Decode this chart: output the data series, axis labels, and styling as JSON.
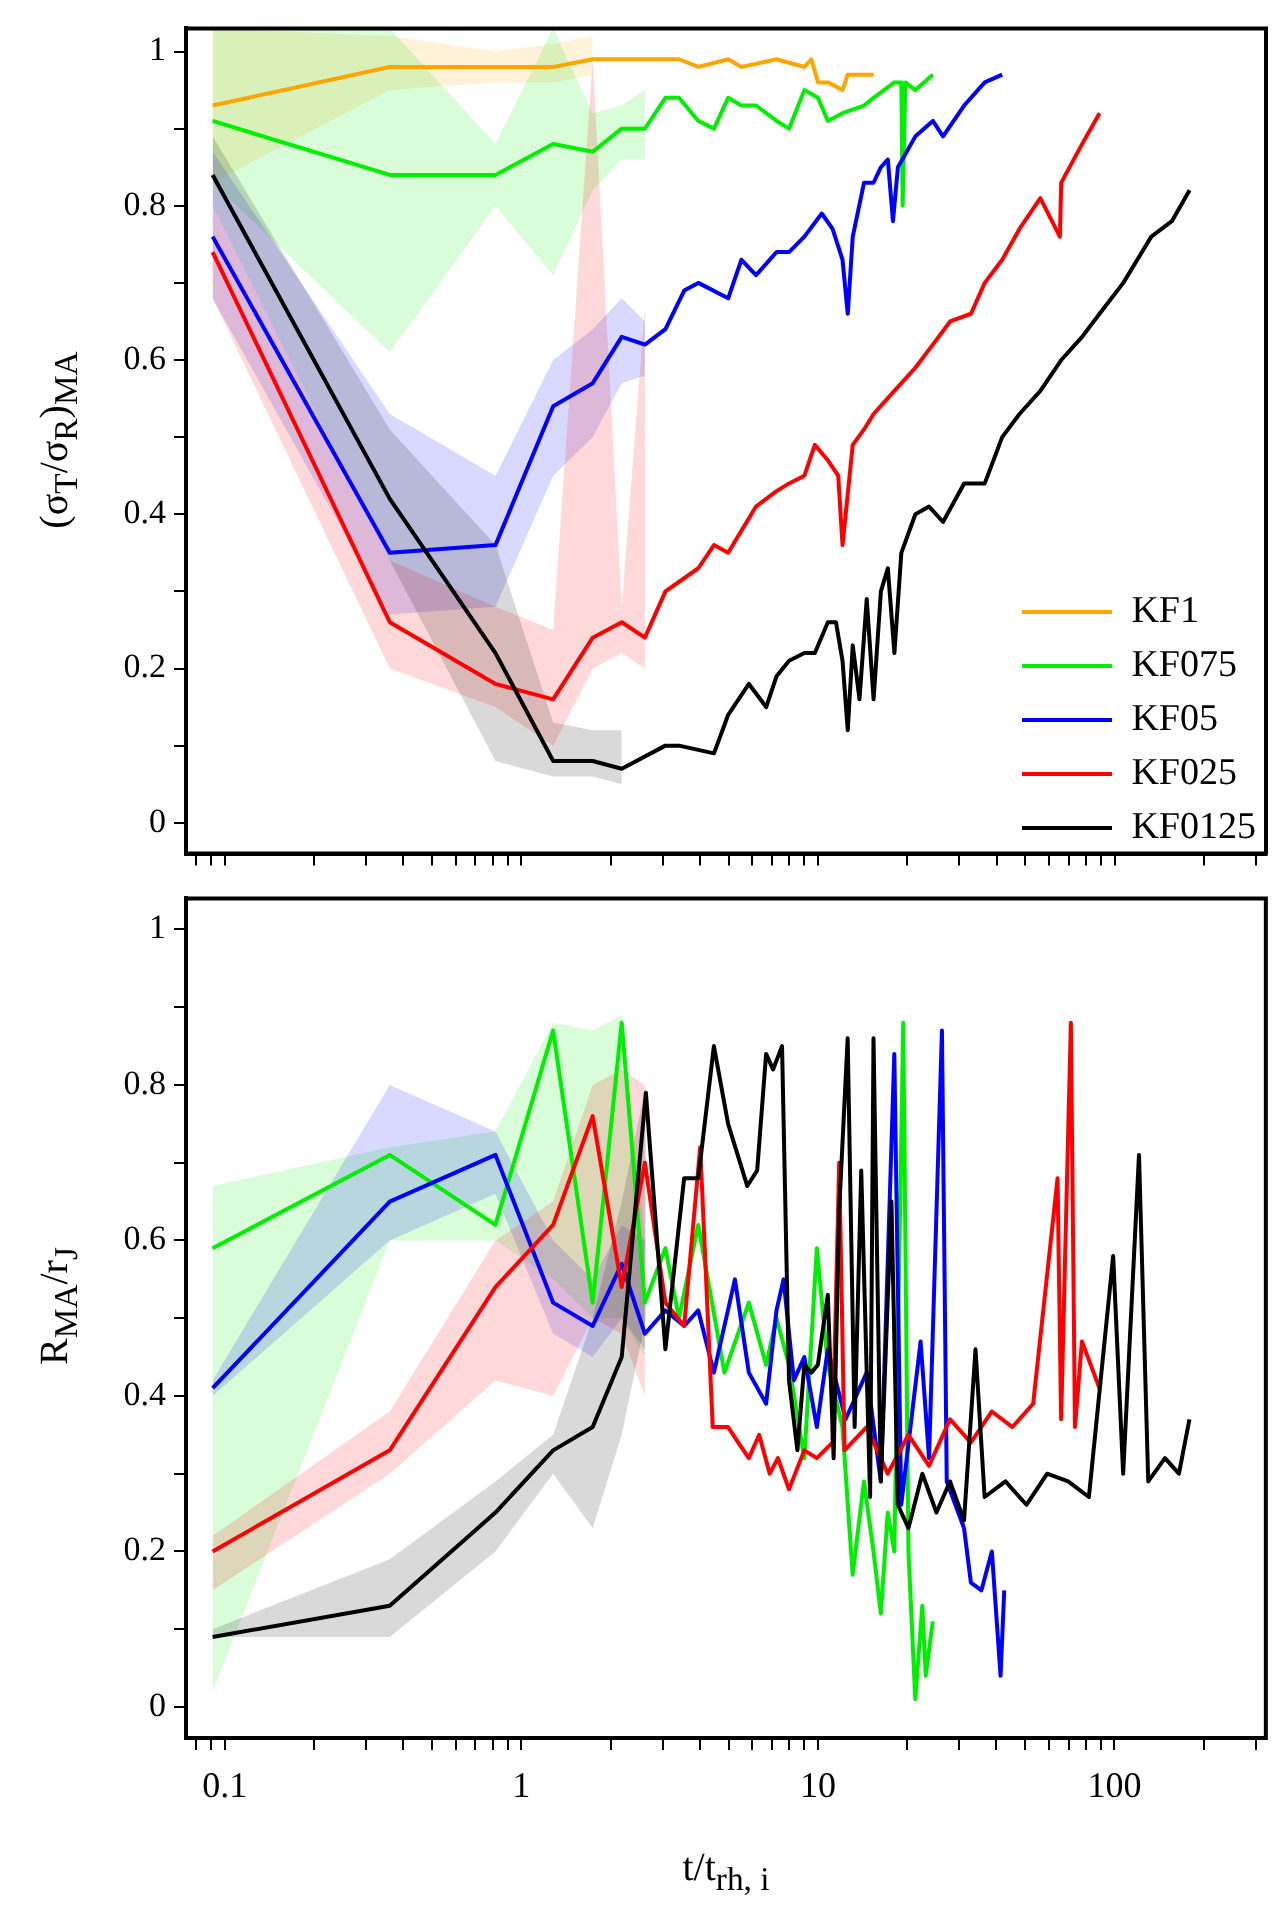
{
  "chart_data": [
    {
      "type": "line",
      "ylabel": "(σ$_{T}$/σ$_{R}$)$_{MA}$",
      "log": "x",
      "grid": false,
      "legend": "bottom right",
      "marker": "none",
      "tick_labels": "y",
      "xlim": [
        0.074,
        324
      ],
      "xticks": [
        {
          "value": 0.08,
          "label": null
        },
        {
          "value": 0.09,
          "label": null
        },
        {
          "value": 0.1,
          "label": null
        },
        {
          "value": 0.2,
          "label": null
        },
        {
          "value": 0.3,
          "label": null
        },
        {
          "value": 0.4,
          "label": null
        },
        {
          "value": 0.5,
          "label": null
        },
        {
          "value": 0.6,
          "label": null
        },
        {
          "value": 0.7,
          "label": null
        },
        {
          "value": 0.8,
          "label": null
        },
        {
          "value": 0.9,
          "label": null
        },
        {
          "value": 1,
          "label": null
        },
        {
          "value": 2,
          "label": null
        },
        {
          "value": 3,
          "label": null
        },
        {
          "value": 4,
          "label": null
        },
        {
          "value": 5,
          "label": null
        },
        {
          "value": 6,
          "label": null
        },
        {
          "value": 7,
          "label": null
        },
        {
          "value": 8,
          "label": null
        },
        {
          "value": 9,
          "label": null
        },
        {
          "value": 10,
          "label": null
        },
        {
          "value": 20,
          "label": null
        },
        {
          "value": 30,
          "label": null
        },
        {
          "value": 40,
          "label": null
        },
        {
          "value": 50,
          "label": null
        },
        {
          "value": 60,
          "label": null
        },
        {
          "value": 70,
          "label": null
        },
        {
          "value": 80,
          "label": null
        },
        {
          "value": 90,
          "label": null
        },
        {
          "value": 100,
          "label": null
        },
        {
          "value": 200,
          "label": null
        },
        {
          "value": 300,
          "label": null
        }
      ],
      "ylim": [
        -0.04,
        1.03
      ],
      "yticks": [
        0,
        {
          "value": 0.1,
          "label": null
        },
        0.2,
        {
          "value": 0.3,
          "label": null
        },
        0.4,
        {
          "value": 0.5,
          "label": null
        },
        0.6,
        {
          "value": 0.7,
          "label": null
        },
        0.8,
        {
          "value": 0.9,
          "label": null
        },
        1
      ],
      "series": [
        {
          "name": "KF1",
          "color": "#ffa500",
          "x": [
            0.091,
            0.36,
            0.818,
            1.28,
            1.74,
            2.61,
            3.4,
            3.95,
            4.98,
            5.52,
            7.25,
            9.0,
            9.5,
            10,
            10.8,
            12.1,
            12.6,
            15.4
          ],
          "values": [
            0.93,
            0.98,
            0.98,
            0.98,
            0.99,
            0.99,
            0.99,
            0.98,
            0.99,
            0.98,
            0.99,
            0.98,
            0.99,
            0.96,
            0.96,
            0.95,
            0.97,
            0.97
          ],
          "lower": [
            0.83,
            0.95,
            0.96,
            0.96,
            0.97,
            null,
            null,
            null,
            null,
            null,
            null,
            null,
            null,
            null,
            null,
            null,
            null,
            null
          ],
          "upper": [
            1.03,
            1.02,
            1.0,
            1.01,
            1.02,
            null,
            null,
            null,
            null,
            null,
            null,
            null,
            null,
            null,
            null,
            null,
            null,
            null
          ]
        },
        {
          "name": "KF075",
          "color": "#00ee00",
          "x": [
            0.091,
            0.36,
            0.818,
            1.28,
            1.74,
            2.18,
            2.61,
            3.06,
            3.4,
            3.95,
            4.46,
            4.98,
            5.52,
            6.18,
            7.25,
            7.99,
            9.0,
            10,
            10.8,
            12.1,
            14.3,
            15.4,
            18.1,
            19.1,
            19.3,
            19.7,
            21.3,
            24.4
          ],
          "values": [
            0.91,
            0.84,
            0.84,
            0.88,
            0.87,
            0.9,
            0.9,
            0.94,
            0.94,
            0.91,
            0.9,
            0.94,
            0.93,
            0.93,
            0.91,
            0.9,
            0.95,
            0.94,
            0.91,
            0.92,
            0.93,
            0.94,
            0.96,
            0.96,
            0.8,
            0.96,
            0.95,
            0.97
          ],
          "lower": [
            0.83,
            0.61,
            0.8,
            0.71,
            0.82,
            0.86,
            0.86,
            null,
            null,
            null,
            null,
            null,
            null,
            null,
            null,
            null,
            null,
            null,
            null,
            null,
            null,
            null,
            null,
            null,
            null,
            null,
            null,
            null
          ],
          "upper": [
            1.03,
            1.03,
            0.88,
            1.03,
            0.92,
            0.93,
            0.95,
            null,
            null,
            null,
            null,
            null,
            null,
            null,
            null,
            null,
            null,
            null,
            null,
            null,
            null,
            null,
            null,
            null,
            null,
            null,
            null,
            null
          ]
        },
        {
          "name": "KF05",
          "color": "#0000ff",
          "x": [
            0.091,
            0.36,
            0.818,
            1.28,
            1.74,
            2.18,
            2.61,
            3.06,
            3.54,
            3.95,
            4.98,
            5.52,
            6.18,
            7.25,
            7.99,
            9.0,
            10.3,
            11.2,
            12.1,
            12.6,
            13.1,
            14.3,
            15.4,
            16.3,
            17.2,
            17.9,
            18.6,
            21.3,
            24.4,
            26.4,
            31.1,
            36.5,
            41.8
          ],
          "values": [
            0.76,
            0.35,
            0.36,
            0.54,
            0.57,
            0.63,
            0.62,
            0.64,
            0.69,
            0.7,
            0.68,
            0.73,
            0.71,
            0.74,
            0.74,
            0.76,
            0.79,
            0.77,
            0.73,
            0.66,
            0.76,
            0.83,
            0.83,
            0.85,
            0.86,
            0.78,
            0.85,
            0.89,
            0.91,
            0.89,
            0.93,
            0.96,
            0.97
          ],
          "lower": [
            0.68,
            0.27,
            0.28,
            0.45,
            0.5,
            0.57,
            0.58,
            null,
            null,
            null,
            null,
            null,
            null,
            null,
            null,
            null,
            null,
            null,
            null,
            null,
            null,
            null,
            null,
            null,
            null,
            null,
            null,
            null,
            null,
            null,
            null,
            null,
            null
          ],
          "upper": [
            0.87,
            0.53,
            0.45,
            0.6,
            0.64,
            0.68,
            0.65,
            null,
            null,
            null,
            null,
            null,
            null,
            null,
            null,
            null,
            null,
            null,
            null,
            null,
            null,
            null,
            null,
            null,
            null,
            null,
            null,
            null,
            null,
            null,
            null,
            null,
            null
          ]
        },
        {
          "name": "KF025",
          "color": "#ff0000",
          "x": [
            0.091,
            0.36,
            0.818,
            1.28,
            1.74,
            2.18,
            2.61,
            3.06,
            3.95,
            4.46,
            4.98,
            6.18,
            7.25,
            7.99,
            9.0,
            9.76,
            10.8,
            11.7,
            12.1,
            13.1,
            14.3,
            15.4,
            18.1,
            21.3,
            24.4,
            27.9,
            32.8,
            36.5,
            41.8,
            47.8,
            56.2,
            65.4,
            66.1,
            77.7,
            89.0
          ],
          "values": [
            0.74,
            0.26,
            0.18,
            0.16,
            0.24,
            0.26,
            0.24,
            0.3,
            0.33,
            0.36,
            0.35,
            0.41,
            0.43,
            0.44,
            0.45,
            0.49,
            0.47,
            0.45,
            0.36,
            0.49,
            0.51,
            0.53,
            0.56,
            0.59,
            0.62,
            0.65,
            0.66,
            0.7,
            0.73,
            0.77,
            0.81,
            0.76,
            0.83,
            0.88,
            0.92
          ],
          "lower": [
            0.68,
            0.2,
            0.15,
            0.1,
            0.2,
            0.22,
            0.2,
            null,
            null,
            null,
            null,
            null,
            null,
            null,
            null,
            null,
            null,
            null,
            null,
            null,
            null,
            null,
            null,
            null,
            null,
            null,
            null,
            null,
            null,
            null,
            null,
            null,
            null,
            null,
            null
          ],
          "upper": [
            0.8,
            0.34,
            0.28,
            0.25,
            0.99,
            0.28,
            0.67,
            null,
            null,
            null,
            null,
            null,
            null,
            null,
            null,
            null,
            null,
            null,
            null,
            null,
            null,
            null,
            null,
            null,
            null,
            null,
            null,
            null,
            null,
            null,
            null,
            null,
            null,
            null,
            null
          ]
        },
        {
          "name": "KF0125",
          "color": "#000000",
          "x": [
            0.091,
            0.36,
            0.818,
            1.28,
            1.74,
            2.18,
            3.06,
            3.4,
            4.46,
            4.98,
            5.85,
            6.69,
            7.25,
            7.99,
            9.0,
            9.76,
            10.8,
            11.5,
            12.1,
            12.6,
            13.1,
            13.8,
            14.6,
            15.4,
            16.3,
            17.2,
            18.1,
            19.1,
            21.3,
            23.7,
            26.4,
            31.1,
            36.5,
            41.8,
            47.8,
            56.2,
            66.1,
            77.7,
            89.0,
            107,
            133,
            156,
            179
          ],
          "values": [
            0.84,
            0.42,
            0.22,
            0.08,
            0.08,
            0.07,
            0.1,
            0.1,
            0.09,
            0.14,
            0.18,
            0.15,
            0.19,
            0.21,
            0.22,
            0.22,
            0.26,
            0.26,
            0.21,
            0.12,
            0.23,
            0.16,
            0.29,
            0.16,
            0.3,
            0.33,
            0.22,
            0.35,
            0.4,
            0.41,
            0.39,
            0.44,
            0.44,
            0.5,
            0.53,
            0.56,
            0.6,
            0.63,
            0.66,
            0.7,
            0.76,
            0.78,
            0.82
          ],
          "lower": [
            0.8,
            0.34,
            0.08,
            0.06,
            0.06,
            0.05,
            null,
            null,
            null,
            null,
            null,
            null,
            null,
            null,
            null,
            null,
            null,
            null,
            null,
            null,
            null,
            null,
            null,
            null,
            null,
            null,
            null,
            null,
            null,
            null,
            null,
            null,
            null,
            null,
            null,
            null,
            null,
            null,
            null,
            null,
            null,
            null,
            null
          ],
          "upper": [
            0.89,
            0.51,
            0.36,
            0.13,
            0.12,
            0.12,
            null,
            null,
            null,
            null,
            null,
            null,
            null,
            null,
            null,
            null,
            null,
            null,
            null,
            null,
            null,
            null,
            null,
            null,
            null,
            null,
            null,
            null,
            null,
            null,
            null,
            null,
            null,
            null,
            null,
            null,
            null,
            null,
            null,
            null,
            null,
            null,
            null
          ]
        }
      ]
    },
    {
      "type": "line",
      "xlabel": "t/t$_{rh, i}$",
      "ylabel": "R$_{MA}$/r$_{J}$",
      "log": "x",
      "grid": false,
      "marker": "none",
      "xlim": [
        0.074,
        324
      ],
      "xticks": [
        {
          "value": 0.08,
          "label": null
        },
        {
          "value": 0.09,
          "label": null
        },
        {
          "value": 0.1,
          "label": "0.1"
        },
        {
          "value": 0.2,
          "label": null
        },
        {
          "value": 0.3,
          "label": null
        },
        {
          "value": 0.4,
          "label": null
        },
        {
          "value": 0.5,
          "label": null
        },
        {
          "value": 0.6,
          "label": null
        },
        {
          "value": 0.7,
          "label": null
        },
        {
          "value": 0.8,
          "label": null
        },
        {
          "value": 0.9,
          "label": null
        },
        1,
        {
          "value": 2,
          "label": null
        },
        {
          "value": 3,
          "label": null
        },
        {
          "value": 4,
          "label": null
        },
        {
          "value": 5,
          "label": null
        },
        {
          "value": 6,
          "label": null
        },
        {
          "value": 7,
          "label": null
        },
        {
          "value": 8,
          "label": null
        },
        {
          "value": 9,
          "label": null
        },
        10,
        {
          "value": 20,
          "label": null
        },
        {
          "value": 30,
          "label": null
        },
        {
          "value": 40,
          "label": null
        },
        {
          "value": 50,
          "label": null
        },
        {
          "value": 60,
          "label": null
        },
        {
          "value": 70,
          "label": null
        },
        {
          "value": 80,
          "label": null
        },
        {
          "value": 90,
          "label": null
        },
        100,
        {
          "value": 200,
          "label": null
        },
        {
          "value": 300,
          "label": null
        }
      ],
      "ylim": [
        -0.04,
        1.04
      ],
      "yticks": [
        0,
        {
          "value": 0.1,
          "label": null
        },
        0.2,
        {
          "value": 0.3,
          "label": null
        },
        0.4,
        {
          "value": 0.5,
          "label": null
        },
        0.6,
        {
          "value": 0.7,
          "label": null
        },
        0.8,
        {
          "value": 0.9,
          "label": null
        },
        1
      ],
      "series": [
        {
          "color": "#00ee00",
          "x": [
            0.091,
            0.36,
            0.818,
            1.28,
            1.74,
            2.18,
            2.61,
            3.06,
            3.4,
            3.95,
            4.84,
            5.85,
            6.69,
            7.25,
            7.99,
            9.0,
            9.92,
            10.8,
            12.1,
            13.1,
            14.3,
            15.4,
            16.3,
            17.2,
            18.1,
            19.4,
            20.2,
            21.3,
            22.5,
            23.1,
            24.4
          ],
          "values": [
            0.59,
            0.71,
            0.62,
            0.87,
            0.52,
            0.88,
            0.52,
            0.59,
            0.5,
            0.62,
            0.43,
            0.52,
            0.44,
            0.5,
            0.44,
            0.32,
            0.59,
            0.44,
            0.36,
            0.17,
            0.29,
            0.2,
            0.12,
            0.25,
            0.2,
            0.88,
            0.2,
            0.01,
            0.13,
            0.04,
            0.11
          ],
          "lower": [
            0.02,
            0.6,
            0.6,
            0.55,
            0.5,
            0.5,
            0.45,
            null,
            null,
            null,
            null,
            null,
            null,
            null,
            null,
            null,
            null,
            null,
            null,
            null,
            null,
            null,
            null,
            null,
            null,
            null,
            null,
            null,
            null,
            null,
            null
          ],
          "upper": [
            0.67,
            0.72,
            0.74,
            0.88,
            0.87,
            0.89,
            0.6,
            null,
            null,
            null,
            null,
            null,
            null,
            null,
            null,
            null,
            null,
            null,
            null,
            null,
            null,
            null,
            null,
            null,
            null,
            null,
            null,
            null,
            null,
            null,
            null
          ]
        },
        {
          "color": "#0000ff",
          "x": [
            0.091,
            0.36,
            0.818,
            1.28,
            1.74,
            2.18,
            2.61,
            3.06,
            3.54,
            3.95,
            4.46,
            5.25,
            5.85,
            6.69,
            7.25,
            7.66,
            8.3,
            9.0,
            9.92,
            10.8,
            12.4,
            14.6,
            16.3,
            18.1,
            19.1,
            22.2,
            23.7,
            26.2,
            27.2,
            31.1,
            32.8,
            35.6,
            38.6,
            41.3,
            42.5
          ],
          "values": [
            0.41,
            0.65,
            0.71,
            0.52,
            0.49,
            0.57,
            0.48,
            0.51,
            0.49,
            0.51,
            0.43,
            0.55,
            0.43,
            0.39,
            0.51,
            0.55,
            0.42,
            0.45,
            0.36,
            0.46,
            0.37,
            0.43,
            0.29,
            0.84,
            0.26,
            0.47,
            0.32,
            0.87,
            0.29,
            0.23,
            0.16,
            0.15,
            0.2,
            0.04,
            0.15
          ],
          "lower": [
            0.4,
            0.6,
            0.66,
            0.48,
            0.45,
            0.5,
            0.46,
            null,
            null,
            null,
            null,
            null,
            null,
            null,
            null,
            null,
            null,
            null,
            null,
            null,
            null,
            null,
            null,
            null,
            null,
            null,
            null,
            null,
            null,
            null,
            null,
            null,
            null,
            null,
            null
          ],
          "upper": [
            0.42,
            0.8,
            0.74,
            0.6,
            0.55,
            0.62,
            0.6,
            null,
            null,
            null,
            null,
            null,
            null,
            null,
            null,
            null,
            null,
            null,
            null,
            null,
            null,
            null,
            null,
            null,
            null,
            null,
            null,
            null,
            null,
            null,
            null,
            null,
            null,
            null,
            null
          ]
        },
        {
          "color": "#ff0000",
          "x": [
            0.091,
            0.36,
            0.818,
            1.28,
            1.74,
            2.18,
            2.61,
            3.06,
            3.54,
            4.01,
            4.42,
            4.98,
            5.39,
            5.85,
            6.34,
            6.88,
            7.33,
            7.99,
            9.0,
            9.92,
            11.2,
            11.8,
            12.3,
            14.6,
            17.2,
            20.2,
            23.7,
            27.9,
            32.8,
            38.6,
            45.3,
            53.2,
            64.3,
            66.1,
            71.3,
            73.6,
            77.7,
            89.0
          ],
          "values": [
            0.2,
            0.33,
            0.54,
            0.62,
            0.76,
            0.54,
            0.7,
            0.52,
            0.49,
            0.72,
            0.36,
            0.36,
            0.34,
            0.32,
            0.35,
            0.3,
            0.32,
            0.28,
            0.33,
            0.32,
            0.34,
            0.7,
            0.33,
            0.36,
            0.3,
            0.35,
            0.31,
            0.37,
            0.34,
            0.38,
            0.36,
            0.39,
            0.68,
            0.37,
            0.88,
            0.36,
            0.47,
            0.41
          ],
          "lower": [
            0.15,
            0.3,
            0.42,
            0.4,
            0.5,
            0.48,
            0.4,
            null,
            null,
            null,
            null,
            null,
            null,
            null,
            null,
            null,
            null,
            null,
            null,
            null,
            null,
            null,
            null,
            null,
            null,
            null,
            null,
            null,
            null,
            null,
            null,
            null,
            null,
            null,
            null,
            null,
            null,
            null
          ],
          "upper": [
            0.22,
            0.38,
            0.6,
            0.65,
            0.8,
            0.82,
            0.8,
            null,
            null,
            null,
            null,
            null,
            null,
            null,
            null,
            null,
            null,
            null,
            null,
            null,
            null,
            null,
            null,
            null,
            null,
            null,
            null,
            null,
            null,
            null,
            null,
            null,
            null,
            null,
            null,
            null,
            null,
            null
          ]
        },
        {
          "color": "#000000",
          "x": [
            0.091,
            0.36,
            0.818,
            1.28,
            1.74,
            2.18,
            2.63,
            3.06,
            3.54,
            3.95,
            4.46,
            4.98,
            5.78,
            6.24,
            6.69,
            7.06,
            7.57,
            7.99,
            8.53,
            9.0,
            9.5,
            10,
            10.8,
            11.3,
            11.8,
            12.6,
            13.3,
            14.0,
            15.0,
            15.4,
            16.3,
            17.7,
            18.6,
            20.2,
            22.5,
            25.1,
            27.9,
            31.1,
            34.0,
            36.5,
            42.9,
            50.5,
            59.3,
            69.8,
            82.0,
            99.0,
            107,
            121,
            130,
            148,
            165,
            179
          ],
          "values": [
            0.09,
            0.13,
            0.25,
            0.33,
            0.36,
            0.45,
            0.79,
            0.46,
            0.68,
            0.68,
            0.85,
            0.75,
            0.67,
            0.69,
            0.84,
            0.82,
            0.85,
            0.42,
            0.33,
            0.44,
            0.43,
            0.44,
            0.53,
            0.32,
            0.64,
            0.86,
            0.36,
            0.69,
            0.27,
            0.86,
            0.29,
            0.65,
            0.26,
            0.23,
            0.3,
            0.25,
            0.29,
            0.24,
            0.46,
            0.27,
            0.29,
            0.26,
            0.3,
            0.29,
            0.27,
            0.58,
            0.3,
            0.71,
            0.29,
            0.32,
            0.3,
            0.37
          ],
          "lower": [
            0.09,
            0.09,
            0.2,
            0.3,
            0.23,
            0.35,
            0.5,
            null,
            null,
            null,
            null,
            null,
            null,
            null,
            null,
            null,
            null,
            null,
            null,
            null,
            null,
            null,
            null,
            null,
            null,
            null,
            null,
            null,
            null,
            null,
            null,
            null,
            null,
            null,
            null,
            null,
            null,
            null,
            null,
            null,
            null,
            null,
            null,
            null,
            null,
            null,
            null,
            null,
            null,
            null,
            null,
            null
          ],
          "upper": [
            0.1,
            0.19,
            0.29,
            0.35,
            0.5,
            0.65,
            0.8,
            null,
            null,
            null,
            null,
            null,
            null,
            null,
            null,
            null,
            null,
            null,
            null,
            null,
            null,
            null,
            null,
            null,
            null,
            null,
            null,
            null,
            null,
            null,
            null,
            null,
            null,
            null,
            null,
            null,
            null,
            null,
            null,
            null,
            null,
            null,
            null,
            null,
            null,
            null,
            null,
            null,
            null,
            null,
            null,
            null
          ]
        }
      ]
    }
  ]
}
